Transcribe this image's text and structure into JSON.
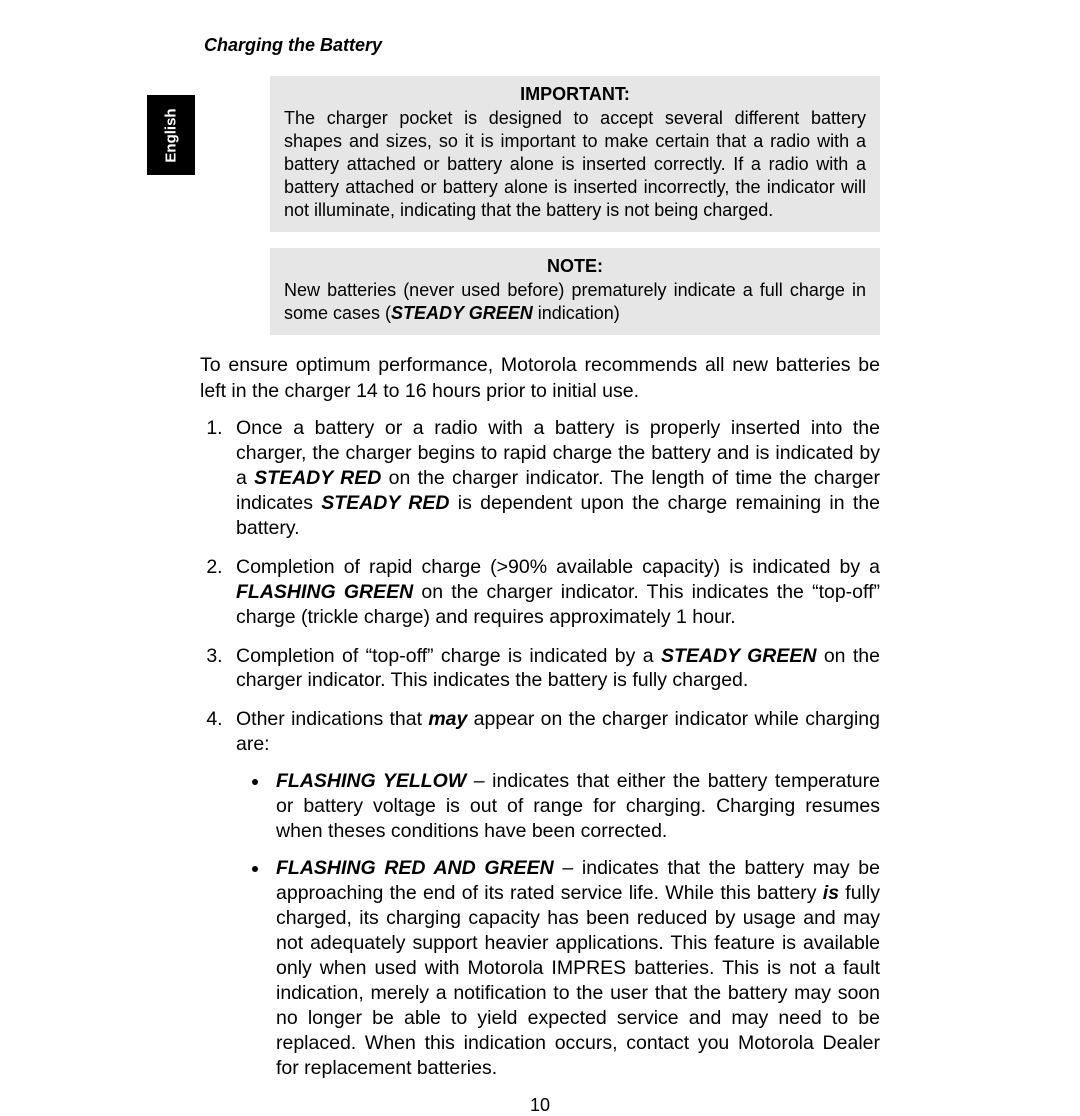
{
  "colors": {
    "page_bg": "#ffffff",
    "callout_bg": "#e6e6e6",
    "tab_bg": "#000000",
    "tab_text": "#ffffff",
    "body_text": "#000000"
  },
  "typography": {
    "body_fontsize_pt": 15,
    "callout_fontsize_pt": 14,
    "header_fontsize_pt": 14,
    "font_family": "Arial/Helvetica"
  },
  "header": {
    "section_title": "Charging the Battery"
  },
  "language_tab": {
    "label": "English"
  },
  "callouts": [
    {
      "title": "IMPORTANT:",
      "body_plain": "The charger pocket is designed to accept several different battery shapes and sizes, so it is important to make certain that a radio with a battery attached or battery alone is inserted correctly. If a radio with a battery attached or battery alone is inserted incorrectly, the indicator will not illuminate, indicating that the battery is not being charged."
    },
    {
      "title": "NOTE:",
      "body_segments": [
        {
          "text": "New batteries (never used before) prematurely indicate a full charge in some cases (",
          "style": "normal"
        },
        {
          "text": "STEADY GREEN",
          "style": "bold-italic"
        },
        {
          "text": " indication)",
          "style": "normal"
        }
      ]
    }
  ],
  "intro": "To ensure optimum performance, Motorola recommends all new batteries be left in the charger 14 to 16 hours prior to initial use.",
  "list": [
    {
      "segments": [
        {
          "text": "Once a battery or a radio with a battery is properly inserted into the charger, the charger begins to rapid charge the battery and is indicated by a ",
          "style": "normal"
        },
        {
          "text": "STEADY RED",
          "style": "bold-italic"
        },
        {
          "text": " on the charger indicator. The length of time the charger indicates ",
          "style": "normal"
        },
        {
          "text": "STEADY RED",
          "style": "bold-italic"
        },
        {
          "text": " is dependent upon the charge remaining in the battery.",
          "style": "normal"
        }
      ]
    },
    {
      "segments": [
        {
          "text": "Completion of rapid charge (>90% available capacity) is indicated by a ",
          "style": "normal"
        },
        {
          "text": "FLASHING GREEN",
          "style": "bold-italic"
        },
        {
          "text": " on the charger indicator. This indicates the “top-off” charge (trickle charge) and requires approximately 1 hour.",
          "style": "normal"
        }
      ]
    },
    {
      "segments": [
        {
          "text": "Completion of “top-off” charge is indicated by a ",
          "style": "normal"
        },
        {
          "text": "STEADY GREEN",
          "style": "bold-italic"
        },
        {
          "text": " on the charger indicator. This indicates the battery is fully charged.",
          "style": "normal"
        }
      ]
    },
    {
      "segments": [
        {
          "text": "Other indications that ",
          "style": "normal"
        },
        {
          "text": "may",
          "style": "bold-italic"
        },
        {
          "text": " appear on the charger indicator while charging are:",
          "style": "normal"
        }
      ],
      "sublist": [
        {
          "segments": [
            {
              "text": "FLASHING YELLOW",
              "style": "bold-italic"
            },
            {
              "text": " – indicates that either the battery temperature or battery voltage is out of range for charging. Charging resumes when theses conditions have been corrected.",
              "style": "normal"
            }
          ]
        },
        {
          "segments": [
            {
              "text": "FLASHING RED AND GREEN",
              "style": "bold-italic"
            },
            {
              "text": " – indicates that the battery may be approaching the end of its rated service life. While this battery ",
              "style": "normal"
            },
            {
              "text": "is",
              "style": "bold-italic"
            },
            {
              "text": " fully charged, its charging capacity has been reduced by usage and may not adequately support heavier applications. This feature is available only when used with Motorola IMPRES batteries. This is not a fault indication, merely a notification to the user that the battery may soon no longer be able to yield expected service and may need to be replaced. When this indication occurs, contact you Motorola Dealer for replacement batteries.",
              "style": "normal"
            }
          ]
        }
      ]
    }
  ],
  "page_number": "10"
}
